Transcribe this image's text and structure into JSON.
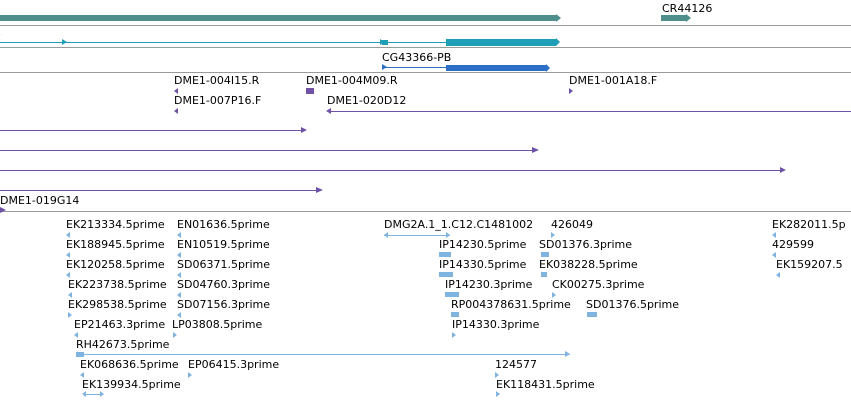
{
  "colors": {
    "teal": "#4e8f8d",
    "cyan": "#1f9fb5",
    "blue": "#2e6fc6",
    "purple": "#6f52a8",
    "est": "#7fb3e0",
    "separator": "#9a9a9a"
  },
  "tracks": {
    "gene_label": "CR44126",
    "transcript_label": "CG43366-PB",
    "clones_top": [
      {
        "label": "DME1-004I15.R"
      },
      {
        "label": "DME1-004M09.R"
      },
      {
        "label": "DME1-001A18.F"
      },
      {
        "label": "DME1-007P16.F"
      },
      {
        "label": "DME1-020D12"
      },
      {
        "label": "DME1-019G14"
      }
    ],
    "ests": [
      {
        "label": "EK213334.5prime"
      },
      {
        "label": "EN01636.5prime"
      },
      {
        "label": "DMG2A.1_1.C12.C1481002"
      },
      {
        "label": "426049"
      },
      {
        "label": "EK282011.5p"
      },
      {
        "label": "EK188945.5prime"
      },
      {
        "label": "EN10519.5prime"
      },
      {
        "label": "IP14230.5prime"
      },
      {
        "label": "SD01376.3prime"
      },
      {
        "label": "429599"
      },
      {
        "label": "EK120258.5prime"
      },
      {
        "label": "SD06371.5prime"
      },
      {
        "label": "IP14330.5prime"
      },
      {
        "label": "EK038228.5prime"
      },
      {
        "label": "EK159207.5"
      },
      {
        "label": "EK223738.5prime"
      },
      {
        "label": "SD04760.3prime"
      },
      {
        "label": "IP14230.3prime"
      },
      {
        "label": "CK00275.3prime"
      },
      {
        "label": "EK298538.5prime"
      },
      {
        "label": "SD07156.3prime"
      },
      {
        "label": "RP004378631.5prime"
      },
      {
        "label": "SD01376.5prime"
      },
      {
        "label": "EP21463.3prime"
      },
      {
        "label": "LP03808.5prime"
      },
      {
        "label": "IP14330.3prime"
      },
      {
        "label": "RH42673.5prime"
      },
      {
        "label": "EK068636.5prime"
      },
      {
        "label": "EP06415.3prime"
      },
      {
        "label": "124577"
      },
      {
        "label": "EK139934.5prime"
      },
      {
        "label": "EK118431.5prime"
      }
    ]
  }
}
